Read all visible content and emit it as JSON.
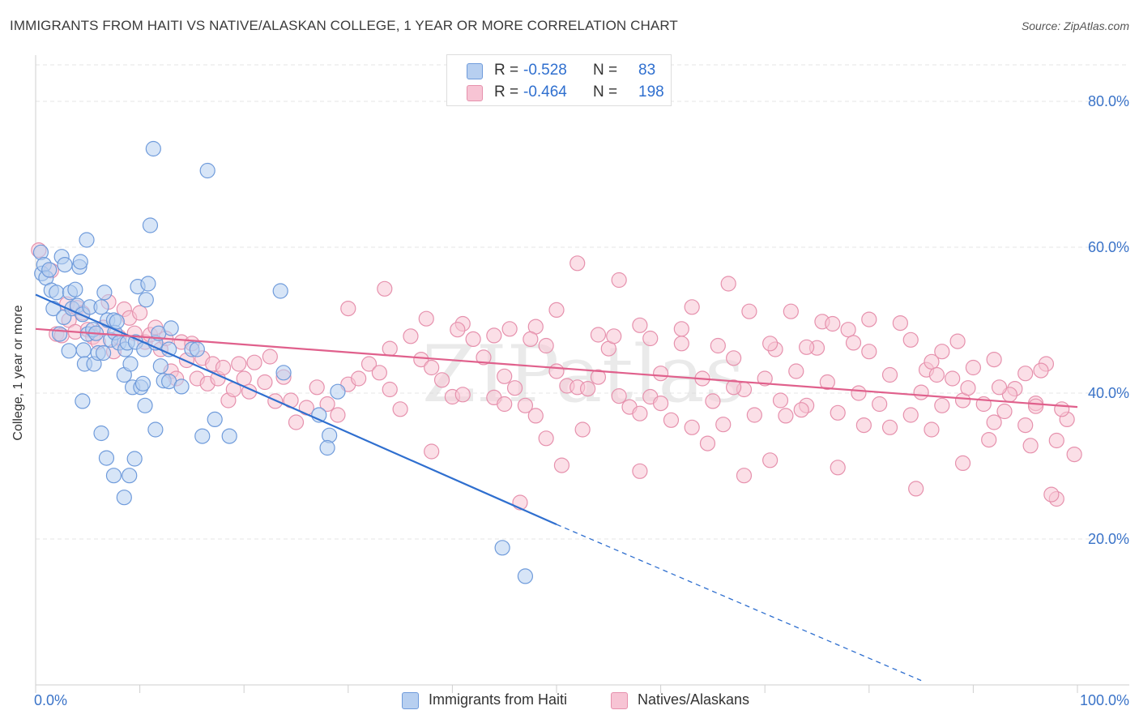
{
  "title": "IMMIGRANTS FROM HAITI VS NATIVE/ALASKAN COLLEGE, 1 YEAR OR MORE CORRELATION CHART",
  "source": "Source: ZipAtlas.com",
  "watermark": "ZIPatlas",
  "colors": {
    "blue_fill": "#b7cff0",
    "blue_stroke": "#6f9bdb",
    "blue_line": "#2f6fcf",
    "pink_fill": "#f7c4d4",
    "pink_stroke": "#e691ad",
    "pink_line": "#e0608c",
    "axis_text": "#3a73c8",
    "grid": "#e6e6e6"
  },
  "legend_top": [
    {
      "r_label": "R =",
      "r_value": "-0.528",
      "n_label": "N =",
      "n_value": "83"
    },
    {
      "r_label": "R =",
      "r_value": "-0.464",
      "n_label": "N =",
      "n_value": "198"
    }
  ],
  "chart_data": {
    "type": "scatter",
    "title": "IMMIGRANTS FROM HAITI VS NATIVE/ALASKAN COLLEGE, 1 YEAR OR MORE CORRELATION CHART",
    "xlabel": "",
    "ylabel": "College, 1 year or more",
    "xlim": [
      0,
      100
    ],
    "ylim": [
      0,
      85
    ],
    "x_tick_labels": [
      "0.0%",
      "100.0%"
    ],
    "y_ticks": [
      20,
      40,
      60,
      80
    ],
    "y_tick_labels": [
      "20.0%",
      "40.0%",
      "60.0%",
      "80.0%"
    ],
    "grid": true,
    "legend_position": "top-center",
    "series": [
      {
        "name": "Immigrants from Haiti",
        "color": "blue",
        "trend": {
          "x": [
            0,
            50
          ],
          "y": [
            53.5,
            22.0
          ],
          "dashed_to": [
            85,
            0.6
          ]
        },
        "points": [
          [
            0.5,
            59.3
          ],
          [
            0.6,
            56.4
          ],
          [
            0.8,
            57.6
          ],
          [
            1.0,
            55.8
          ],
          [
            1.3,
            56.9
          ],
          [
            1.5,
            54.1
          ],
          [
            1.7,
            51.6
          ],
          [
            2.0,
            53.8
          ],
          [
            2.3,
            48.1
          ],
          [
            2.5,
            58.7
          ],
          [
            2.7,
            50.4
          ],
          [
            2.8,
            57.6
          ],
          [
            3.2,
            45.8
          ],
          [
            3.3,
            53.8
          ],
          [
            3.5,
            51.6
          ],
          [
            3.8,
            54.2
          ],
          [
            4.0,
            52.0
          ],
          [
            4.2,
            57.3
          ],
          [
            4.3,
            58.0
          ],
          [
            4.5,
            50.8
          ],
          [
            4.6,
            45.9
          ],
          [
            4.7,
            44.0
          ],
          [
            4.9,
            61.0
          ],
          [
            5.0,
            48.1
          ],
          [
            5.2,
            51.8
          ],
          [
            5.5,
            48.7
          ],
          [
            5.6,
            44.0
          ],
          [
            5.8,
            48.2
          ],
          [
            6.0,
            45.5
          ],
          [
            6.3,
            51.8
          ],
          [
            6.5,
            45.5
          ],
          [
            6.6,
            53.8
          ],
          [
            6.9,
            50.0
          ],
          [
            7.2,
            47.3
          ],
          [
            7.5,
            50.0
          ],
          [
            7.6,
            48.3
          ],
          [
            7.8,
            49.8
          ],
          [
            8.0,
            46.9
          ],
          [
            8.5,
            42.5
          ],
          [
            8.6,
            46.0
          ],
          [
            8.8,
            46.9
          ],
          [
            9.1,
            44.0
          ],
          [
            9.3,
            40.8
          ],
          [
            9.6,
            47.0
          ],
          [
            9.8,
            54.6
          ],
          [
            10.1,
            40.8
          ],
          [
            10.3,
            41.3
          ],
          [
            10.4,
            46.0
          ],
          [
            10.6,
            52.8
          ],
          [
            10.8,
            55.0
          ],
          [
            11.5,
            46.9
          ],
          [
            11.8,
            48.2
          ],
          [
            12.0,
            43.7
          ],
          [
            12.3,
            41.7
          ],
          [
            12.8,
            41.6
          ],
          [
            13.0,
            48.9
          ],
          [
            14.0,
            40.9
          ],
          [
            15.0,
            46.0
          ],
          [
            15.5,
            46.0
          ],
          [
            17.2,
            36.4
          ],
          [
            18.6,
            34.1
          ],
          [
            4.5,
            38.9
          ],
          [
            10.5,
            38.3
          ],
          [
            6.3,
            34.5
          ],
          [
            11.5,
            35.0
          ],
          [
            16.0,
            34.1
          ],
          [
            6.8,
            31.1
          ],
          [
            9.5,
            31.0
          ],
          [
            12.8,
            46.0
          ],
          [
            7.5,
            28.7
          ],
          [
            9.0,
            28.7
          ],
          [
            8.5,
            25.7
          ],
          [
            11.3,
            73.5
          ],
          [
            16.5,
            70.5
          ],
          [
            11.0,
            63.0
          ],
          [
            23.5,
            54.0
          ],
          [
            23.8,
            42.8
          ],
          [
            27.2,
            37.0
          ],
          [
            28.2,
            34.2
          ],
          [
            28.0,
            32.5
          ],
          [
            29.0,
            40.2
          ],
          [
            44.8,
            18.8
          ],
          [
            47.0,
            14.9
          ]
        ]
      },
      {
        "name": "Natives/Alaskans",
        "color": "pink",
        "trend": {
          "x": [
            0,
            100
          ],
          "y": [
            48.8,
            38.1
          ]
        },
        "points": [
          [
            0.3,
            59.6
          ],
          [
            1.5,
            56.8
          ],
          [
            2.0,
            48.1
          ],
          [
            2.5,
            47.9
          ],
          [
            3.0,
            52.2
          ],
          [
            3.2,
            50.0
          ],
          [
            3.8,
            48.4
          ],
          [
            4.0,
            51.7
          ],
          [
            4.5,
            51.0
          ],
          [
            5.0,
            48.7
          ],
          [
            5.5,
            47.7
          ],
          [
            6.0,
            47.0
          ],
          [
            6.5,
            49.0
          ],
          [
            7.0,
            52.5
          ],
          [
            7.5,
            45.7
          ],
          [
            8.0,
            47.7
          ],
          [
            8.5,
            51.5
          ],
          [
            9.0,
            50.3
          ],
          [
            9.5,
            48.2
          ],
          [
            10.0,
            51.0
          ],
          [
            10.5,
            47.0
          ],
          [
            11.0,
            48.0
          ],
          [
            11.5,
            49.0
          ],
          [
            12.0,
            46.0
          ],
          [
            12.5,
            47.5
          ],
          [
            13.0,
            43.0
          ],
          [
            13.5,
            42.0
          ],
          [
            14.0,
            47.0
          ],
          [
            14.5,
            44.5
          ],
          [
            15.0,
            46.8
          ],
          [
            15.5,
            42.0
          ],
          [
            16.0,
            44.8
          ],
          [
            16.5,
            41.3
          ],
          [
            17.0,
            44.0
          ],
          [
            17.5,
            42.0
          ],
          [
            18.0,
            43.5
          ],
          [
            18.5,
            39.0
          ],
          [
            19.0,
            40.5
          ],
          [
            19.5,
            44.0
          ],
          [
            20.0,
            42.0
          ],
          [
            20.5,
            40.2
          ],
          [
            21.0,
            44.2
          ],
          [
            22.0,
            41.5
          ],
          [
            22.5,
            45.0
          ],
          [
            23.0,
            38.9
          ],
          [
            23.8,
            42.2
          ],
          [
            24.5,
            39.0
          ],
          [
            25.0,
            36.0
          ],
          [
            26.0,
            38.0
          ],
          [
            27.0,
            40.8
          ],
          [
            28.0,
            38.5
          ],
          [
            29.0,
            37.0
          ],
          [
            30.0,
            41.2
          ],
          [
            31.0,
            42.0
          ],
          [
            32.0,
            44.0
          ],
          [
            33.0,
            42.8
          ],
          [
            34.0,
            40.5
          ],
          [
            35.0,
            37.8
          ],
          [
            36.0,
            47.8
          ],
          [
            37.0,
            44.6
          ],
          [
            38.0,
            43.5
          ],
          [
            39.0,
            41.8
          ],
          [
            40.0,
            39.5
          ],
          [
            41.0,
            39.8
          ],
          [
            42.0,
            47.4
          ],
          [
            43.0,
            44.9
          ],
          [
            44.0,
            39.4
          ],
          [
            45.0,
            42.3
          ],
          [
            46.0,
            40.7
          ],
          [
            47.0,
            38.3
          ],
          [
            48.0,
            36.9
          ],
          [
            49.0,
            46.5
          ],
          [
            50.0,
            43.0
          ],
          [
            51.0,
            41.0
          ],
          [
            52.0,
            40.8
          ],
          [
            53.0,
            40.6
          ],
          [
            54.0,
            42.2
          ],
          [
            55.0,
            46.1
          ],
          [
            56.0,
            39.6
          ],
          [
            57.0,
            38.1
          ],
          [
            58.0,
            37.2
          ],
          [
            59.0,
            39.5
          ],
          [
            60.0,
            42.7
          ],
          [
            61.0,
            36.3
          ],
          [
            62.0,
            46.8
          ],
          [
            63.0,
            35.3
          ],
          [
            64.0,
            42.0
          ],
          [
            65.0,
            38.9
          ],
          [
            66.0,
            35.7
          ],
          [
            67.0,
            44.8
          ],
          [
            68.0,
            40.5
          ],
          [
            69.0,
            37.0
          ],
          [
            70.0,
            42.0
          ],
          [
            71.0,
            46.0
          ],
          [
            72.0,
            36.9
          ],
          [
            73.0,
            43.0
          ],
          [
            74.0,
            38.3
          ],
          [
            75.0,
            46.2
          ],
          [
            76.0,
            41.5
          ],
          [
            77.0,
            37.3
          ],
          [
            78.0,
            48.7
          ],
          [
            79.0,
            40.0
          ],
          [
            80.0,
            45.7
          ],
          [
            81.0,
            38.5
          ],
          [
            82.0,
            42.5
          ],
          [
            83.0,
            49.6
          ],
          [
            84.0,
            37.0
          ],
          [
            85.0,
            40.1
          ],
          [
            86.0,
            35.0
          ],
          [
            87.0,
            45.7
          ],
          [
            88.0,
            42.0
          ],
          [
            89.0,
            39.0
          ],
          [
            90.0,
            43.5
          ],
          [
            91.0,
            38.5
          ],
          [
            92.0,
            36.0
          ],
          [
            93.0,
            37.5
          ],
          [
            94.0,
            40.6
          ],
          [
            95.0,
            42.7
          ],
          [
            96.0,
            38.6
          ],
          [
            97.0,
            44.0
          ],
          [
            98.0,
            33.5
          ],
          [
            99.0,
            36.4
          ],
          [
            99.7,
            31.6
          ],
          [
            33.5,
            54.3
          ],
          [
            52.0,
            57.8
          ],
          [
            56.0,
            55.5
          ],
          [
            66.5,
            55.0
          ],
          [
            30.0,
            51.6
          ],
          [
            37.5,
            50.2
          ],
          [
            50.0,
            51.4
          ],
          [
            63.0,
            51.8
          ],
          [
            72.5,
            51.2
          ],
          [
            75.5,
            49.8
          ],
          [
            80.0,
            50.1
          ],
          [
            34.0,
            46.1
          ],
          [
            41.0,
            49.5
          ],
          [
            45.5,
            48.8
          ],
          [
            48.0,
            49.1
          ],
          [
            54.0,
            48.0
          ],
          [
            58.0,
            49.3
          ],
          [
            62.0,
            48.8
          ],
          [
            68.5,
            51.2
          ],
          [
            76.5,
            49.5
          ],
          [
            84.0,
            47.3
          ],
          [
            88.5,
            47.1
          ],
          [
            38.0,
            32.0
          ],
          [
            49.0,
            33.8
          ],
          [
            50.5,
            30.1
          ],
          [
            58.0,
            29.3
          ],
          [
            64.5,
            33.1
          ],
          [
            68.0,
            28.7
          ],
          [
            70.5,
            30.8
          ],
          [
            77.0,
            29.8
          ],
          [
            84.5,
            26.9
          ],
          [
            89.0,
            30.4
          ],
          [
            95.5,
            32.8
          ],
          [
            98.0,
            25.5
          ],
          [
            97.5,
            26.1
          ],
          [
            46.5,
            25.0
          ],
          [
            60.0,
            38.6
          ],
          [
            73.5,
            37.7
          ],
          [
            82.0,
            35.3
          ],
          [
            87.0,
            38.3
          ],
          [
            91.5,
            33.6
          ],
          [
            95.0,
            35.6
          ],
          [
            85.5,
            43.2
          ],
          [
            92.0,
            44.6
          ],
          [
            89.5,
            40.7
          ],
          [
            96.5,
            43.1
          ],
          [
            45.0,
            38.5
          ],
          [
            52.5,
            35.0
          ],
          [
            67.0,
            40.8
          ],
          [
            71.5,
            39.0
          ],
          [
            79.5,
            35.6
          ],
          [
            86.0,
            44.3
          ],
          [
            93.5,
            39.8
          ],
          [
            98.5,
            37.8
          ],
          [
            40.5,
            48.7
          ],
          [
            44.0,
            47.9
          ],
          [
            47.5,
            47.4
          ],
          [
            55.5,
            47.8
          ],
          [
            59.0,
            47.5
          ],
          [
            65.5,
            46.5
          ],
          [
            70.5,
            46.8
          ],
          [
            74.0,
            46.3
          ],
          [
            78.5,
            46.9
          ],
          [
            86.5,
            42.5
          ],
          [
            92.5,
            40.8
          ],
          [
            96.0,
            38.2
          ]
        ]
      }
    ]
  },
  "legend_bottom": [
    "Immigrants from Haiti",
    "Natives/Alaskans"
  ]
}
